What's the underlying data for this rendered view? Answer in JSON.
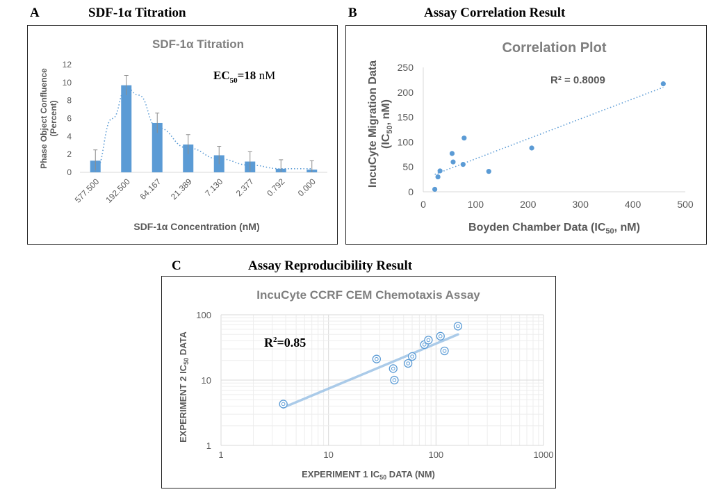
{
  "panels": {
    "a": {
      "letter": "A",
      "heading": "SDF-1α Titration"
    },
    "b": {
      "letter": "B",
      "heading": "Assay Correlation Result"
    },
    "c": {
      "letter": "C",
      "heading": "Assay Reproducibility Result"
    }
  },
  "colors": {
    "bar": "#5b9bd5",
    "point": "#5b9bd5",
    "trend": "#5b9bd5",
    "title_gray": "#7f7f7f",
    "axis": "#d9d9d9",
    "text": "#595959"
  },
  "chart_data": [
    {
      "type": "bar",
      "title": "SDF-1α Titration",
      "xlabel": "SDF-1α Concentration (nM)",
      "ylabel_line1": "Phase Object Confluence",
      "ylabel_line2": "(Percent)",
      "categories": [
        "577.500",
        "192.500",
        "64.167",
        "21.389",
        "7.130",
        "2.377",
        "0.792",
        "0.000"
      ],
      "values": [
        1.3,
        9.7,
        5.5,
        3.1,
        1.9,
        1.2,
        0.4,
        0.3
      ],
      "errors": [
        1.2,
        1.1,
        1.1,
        1.1,
        1.0,
        1.1,
        1.0,
        1.0
      ],
      "ylim": [
        0,
        12
      ],
      "yticks": [
        0,
        2,
        4,
        6,
        8,
        10,
        12
      ],
      "annotation": {
        "ec_prefix": "EC",
        "ec_sub": "50",
        "ec_eq": "=",
        "ec_value": "18",
        "ec_unit": " nM"
      },
      "fit_curve": "dotted"
    },
    {
      "type": "scatter",
      "title": "Correlation Plot",
      "xlabel_pre": "Boyden Chamber Data (IC",
      "xlabel_sub": "50",
      "xlabel_post": ", nM)",
      "ylabel_line1": "IncuCyte Migration Data",
      "ylabel_line2_pre": "(IC",
      "ylabel_line2_sub": "50",
      "ylabel_line2_post": ", nM)",
      "points": [
        [
          22,
          5
        ],
        [
          28,
          30
        ],
        [
          32,
          42
        ],
        [
          55,
          77
        ],
        [
          57,
          60
        ],
        [
          76,
          55
        ],
        [
          78,
          108
        ],
        [
          125,
          41
        ],
        [
          207,
          88
        ],
        [
          458,
          217
        ]
      ],
      "xlim": [
        0,
        500
      ],
      "ylim": [
        0,
        250
      ],
      "xticks": [
        0,
        100,
        200,
        300,
        400,
        500
      ],
      "yticks": [
        0,
        50,
        100,
        150,
        200,
        250
      ],
      "trendline": {
        "x0": 22,
        "y0": 35,
        "x1": 458,
        "y1": 210
      },
      "r2_label": "R² = 0.8009"
    },
    {
      "type": "scatter",
      "scale": "log-log",
      "title": "IncuCyte CCRF CEM Chemotaxis Assay",
      "xlabel_pre": "EXPERIMENT 1 IC",
      "xlabel_sub": "50",
      "xlabel_post": " DATA (NM)",
      "ylabel_pre": "EXPERIMENT 2 IC",
      "ylabel_sub": "50",
      "ylabel_post": " DATA",
      "points": [
        [
          3.8,
          4.3
        ],
        [
          28,
          21
        ],
        [
          40,
          15
        ],
        [
          41,
          10
        ],
        [
          55,
          18
        ],
        [
          60,
          23
        ],
        [
          78,
          35
        ],
        [
          85,
          41
        ],
        [
          110,
          47
        ],
        [
          120,
          28
        ],
        [
          160,
          67
        ]
      ],
      "xlim": [
        1,
        1000
      ],
      "ylim": [
        1,
        100
      ],
      "xticks": [
        "1",
        "10",
        "100",
        "1000"
      ],
      "yticks": [
        "1",
        "10",
        "100"
      ],
      "trendline": {
        "x0": 3.8,
        "y0": 3.8,
        "x1": 160,
        "y1": 50
      },
      "r2_prefix": "R",
      "r2_sup": "2",
      "r2_suffix": "=0.85"
    }
  ]
}
